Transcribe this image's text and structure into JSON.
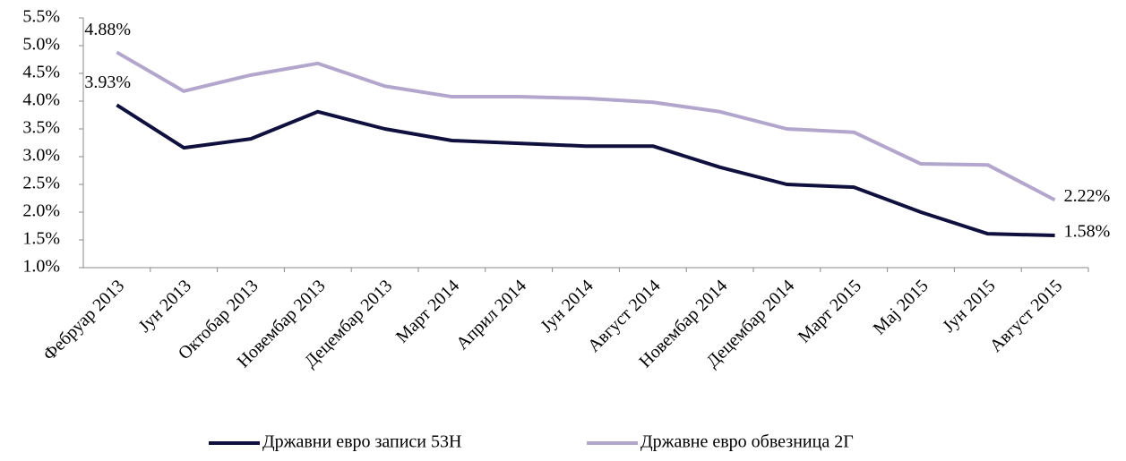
{
  "chart_data": {
    "type": "line",
    "categories": [
      "Фебруар 2013",
      "Јун 2013",
      "Октобар 2013",
      "Новембар 2013",
      "Децембар 2013",
      "Март 2014",
      "Април 2014",
      "Јун 2014",
      "Август 2014",
      "Новембар 2014",
      "Децембар 2014",
      "Март 2015",
      "Мај 2015",
      "Јун 2015",
      "Август 2015"
    ],
    "series": [
      {
        "name": "Државни евро записи 53Н",
        "color": "#10103f",
        "values": [
          3.93,
          3.16,
          3.32,
          3.81,
          3.5,
          3.29,
          3.24,
          3.19,
          3.19,
          2.81,
          2.5,
          2.45,
          2.0,
          1.61,
          1.58
        ],
        "value_labels": [
          "3.93%",
          null,
          null,
          null,
          null,
          null,
          null,
          null,
          null,
          null,
          null,
          null,
          null,
          null,
          "1.58%"
        ]
      },
      {
        "name": "Државне евро обвезница 2Г",
        "color": "#b3a6cc",
        "values": [
          4.88,
          4.18,
          4.47,
          4.68,
          4.27,
          4.08,
          4.08,
          4.05,
          3.98,
          3.81,
          3.5,
          3.44,
          2.87,
          2.85,
          2.22
        ],
        "value_labels": [
          "4.88%",
          null,
          null,
          null,
          null,
          null,
          null,
          null,
          null,
          null,
          null,
          null,
          null,
          null,
          "2.22%"
        ]
      }
    ],
    "ylim": [
      1.0,
      5.5
    ],
    "yticks": [
      {
        "value": 1.0,
        "label": "1.0%"
      },
      {
        "value": 1.5,
        "label": "1.5%"
      },
      {
        "value": 2.0,
        "label": "2.0%"
      },
      {
        "value": 2.5,
        "label": "2.5%"
      },
      {
        "value": 3.0,
        "label": "3.0%"
      },
      {
        "value": 3.5,
        "label": "3.5%"
      },
      {
        "value": 4.0,
        "label": "4.0%"
      },
      {
        "value": 4.5,
        "label": "4.5%"
      },
      {
        "value": 5.0,
        "label": "5.0%"
      },
      {
        "value": 5.5,
        "label": "5.5%"
      }
    ],
    "legend": "bottom",
    "grid": false
  }
}
